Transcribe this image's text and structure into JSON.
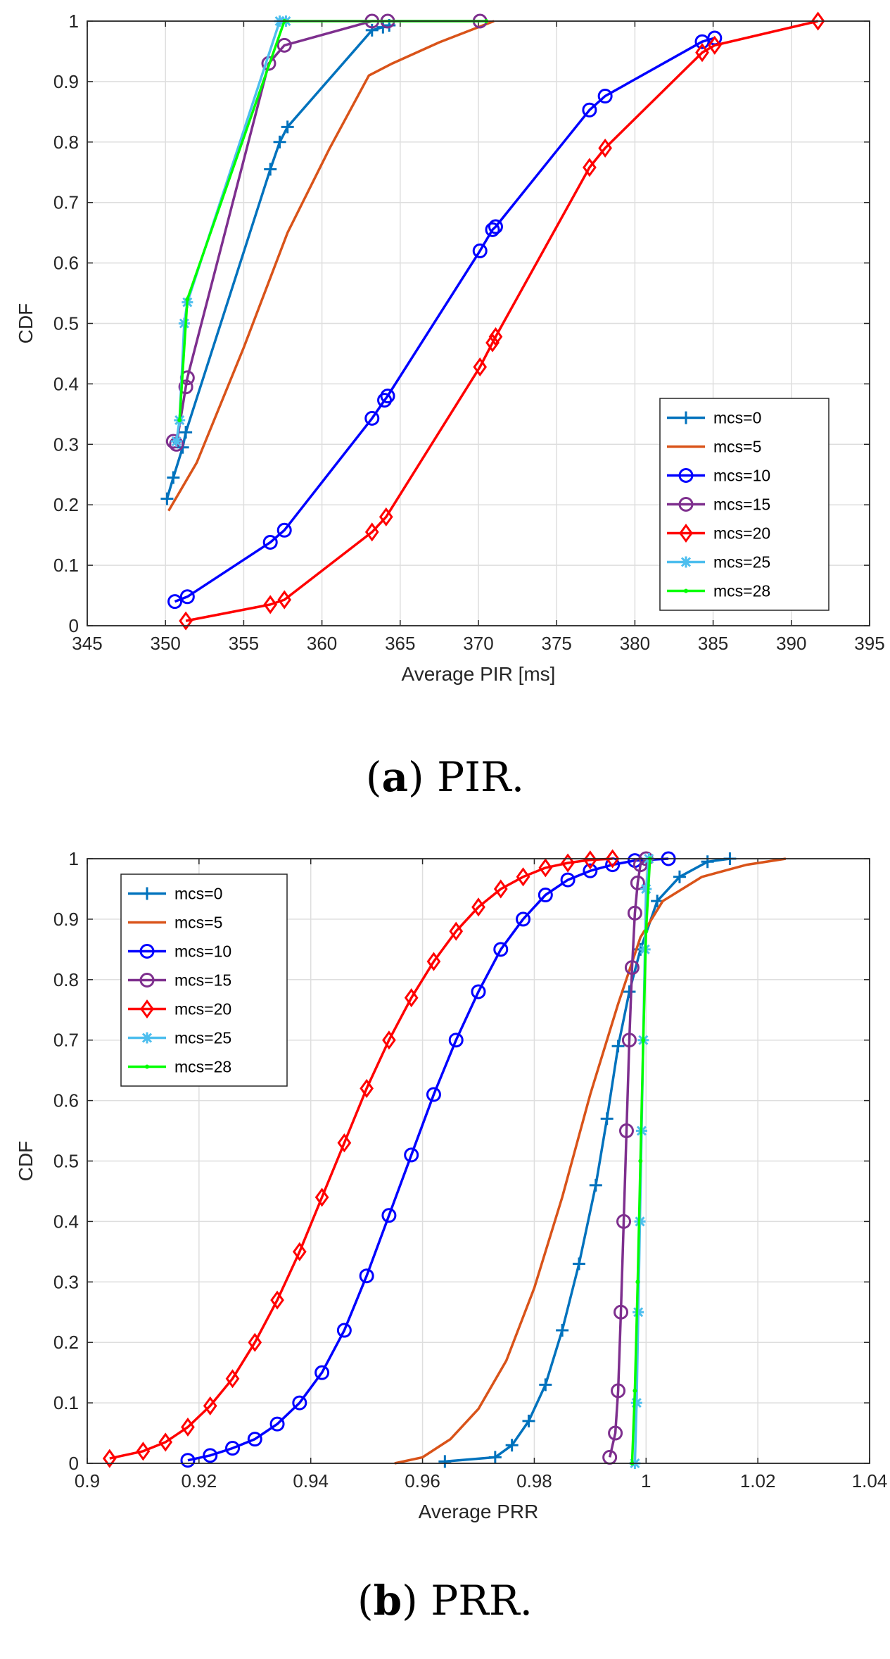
{
  "chart_data": [
    {
      "id": "a",
      "type": "line",
      "caption_letter": "a",
      "caption_text": "PIR.",
      "xlabel": "Average PIR [ms]",
      "ylabel": "CDF",
      "xlim": [
        345,
        395
      ],
      "ylim": [
        0,
        1
      ],
      "xticks": [
        345,
        350,
        355,
        360,
        365,
        370,
        375,
        380,
        385,
        390,
        395
      ],
      "yticks": [
        0,
        0.1,
        0.2,
        0.3,
        0.4,
        0.5,
        0.6,
        0.7,
        0.8,
        0.9,
        1
      ],
      "xtick_labels": [
        "345",
        "350",
        "355",
        "360",
        "365",
        "370",
        "375",
        "380",
        "385",
        "390",
        "395"
      ],
      "ytick_labels": [
        "0",
        "0.1",
        "0.2",
        "0.3",
        "0.4",
        "0.5",
        "0.6",
        "0.7",
        "0.8",
        "0.9",
        "1"
      ],
      "grid": true,
      "legend_position": "bottom-right",
      "series": [
        {
          "name": "mcs=0",
          "color": "#0072BD",
          "marker": "plus",
          "x": [
            350.1,
            350.5,
            351.1,
            351.3,
            356.7,
            357.3,
            357.8,
            363.2,
            363.9,
            364.3
          ],
          "y": [
            0.21,
            0.245,
            0.295,
            0.32,
            0.755,
            0.8,
            0.825,
            0.985,
            0.99,
            0.993
          ]
        },
        {
          "name": "mcs=5",
          "color": "#D95319",
          "marker": "none",
          "x": [
            350.2,
            352,
            355,
            357.8,
            360.5,
            363,
            364.5,
            367.5,
            371
          ],
          "y": [
            0.19,
            0.27,
            0.46,
            0.65,
            0.79,
            0.91,
            0.93,
            0.965,
            1.0
          ]
        },
        {
          "name": "mcs=10",
          "color": "#0000FF",
          "marker": "circle",
          "x": [
            350.6,
            351.4,
            356.7,
            357.6,
            363.2,
            364.0,
            364.2,
            370.1,
            370.9,
            371.1,
            377.1,
            378.1,
            384.3,
            385.1
          ],
          "y": [
            0.04,
            0.048,
            0.138,
            0.158,
            0.343,
            0.373,
            0.38,
            0.62,
            0.655,
            0.66,
            0.853,
            0.876,
            0.966,
            0.972
          ]
        },
        {
          "name": "mcs=15",
          "color": "#7E2F8E",
          "marker": "circle",
          "x": [
            350.5,
            350.7,
            351.3,
            351.4,
            356.6,
            357.6,
            363.2,
            364.2,
            370.1
          ],
          "y": [
            0.305,
            0.3,
            0.395,
            0.41,
            0.93,
            0.96,
            1.0,
            1.0,
            1.0
          ]
        },
        {
          "name": "mcs=20",
          "color": "#FF0000",
          "marker": "diamond",
          "x": [
            351.3,
            356.7,
            357.6,
            363.2,
            364.1,
            370.1,
            370.9,
            371.1,
            377.1,
            378.1,
            384.3,
            385.1,
            391.7
          ],
          "y": [
            0.008,
            0.035,
            0.043,
            0.155,
            0.18,
            0.428,
            0.468,
            0.478,
            0.758,
            0.79,
            0.948,
            0.96,
            1.0
          ]
        },
        {
          "name": "mcs=25",
          "color": "#4DBEEE",
          "marker": "star",
          "x": [
            350.7,
            350.9,
            351.2,
            351.4,
            357.3,
            357.7
          ],
          "y": [
            0.305,
            0.34,
            0.5,
            0.535,
            1.0,
            1.0
          ]
        },
        {
          "name": "mcs=28",
          "color": "#00FF00",
          "marker": "point",
          "x": [
            350.9,
            351.4,
            357.6,
            370.5
          ],
          "y": [
            0.34,
            0.54,
            1.0,
            1.0
          ]
        }
      ]
    },
    {
      "id": "b",
      "type": "line",
      "caption_letter": "b",
      "caption_text": "PRR.",
      "xlabel": "Average PRR",
      "ylabel": "CDF",
      "xlim": [
        0.9,
        1.04
      ],
      "ylim": [
        0,
        1
      ],
      "xticks": [
        0.9,
        0.92,
        0.94,
        0.96,
        0.98,
        1.0,
        1.02,
        1.04
      ],
      "yticks": [
        0,
        0.1,
        0.2,
        0.3,
        0.4,
        0.5,
        0.6,
        0.7,
        0.8,
        0.9,
        1
      ],
      "xtick_labels": [
        "0.9",
        "0.92",
        "0.94",
        "0.96",
        "0.98",
        "1",
        "1.02",
        "1.04"
      ],
      "ytick_labels": [
        "0",
        "0.1",
        "0.2",
        "0.3",
        "0.4",
        "0.5",
        "0.6",
        "0.7",
        "0.8",
        "0.9",
        "1"
      ],
      "grid": true,
      "legend_position": "top-left",
      "series": [
        {
          "name": "mcs=0",
          "color": "#0072BD",
          "marker": "plus",
          "x": [
            0.964,
            0.973,
            0.976,
            0.979,
            0.982,
            0.985,
            0.988,
            0.991,
            0.993,
            0.995,
            0.997,
            0.999,
            1.002,
            1.006,
            1.011,
            1.015
          ],
          "y": [
            0.003,
            0.01,
            0.03,
            0.07,
            0.13,
            0.22,
            0.33,
            0.46,
            0.57,
            0.69,
            0.78,
            0.85,
            0.93,
            0.97,
            0.995,
            1.0
          ]
        },
        {
          "name": "mcs=5",
          "color": "#D95319",
          "marker": "none",
          "x": [
            0.955,
            0.96,
            0.965,
            0.97,
            0.975,
            0.98,
            0.985,
            0.99,
            0.995,
            0.999,
            1.003,
            1.01,
            1.018,
            1.025
          ],
          "y": [
            0.0,
            0.01,
            0.04,
            0.09,
            0.17,
            0.29,
            0.44,
            0.61,
            0.76,
            0.87,
            0.93,
            0.97,
            0.99,
            1.0
          ]
        },
        {
          "name": "mcs=10",
          "color": "#0000FF",
          "marker": "circle",
          "x": [
            0.918,
            0.922,
            0.926,
            0.93,
            0.934,
            0.938,
            0.942,
            0.946,
            0.95,
            0.954,
            0.958,
            0.962,
            0.966,
            0.97,
            0.974,
            0.978,
            0.982,
            0.986,
            0.99,
            0.994,
            0.998,
            1.004
          ],
          "y": [
            0.005,
            0.013,
            0.025,
            0.04,
            0.065,
            0.1,
            0.15,
            0.22,
            0.31,
            0.41,
            0.51,
            0.61,
            0.7,
            0.78,
            0.85,
            0.9,
            0.94,
            0.965,
            0.98,
            0.99,
            0.997,
            1.0
          ]
        },
        {
          "name": "mcs=15",
          "color": "#7E2F8E",
          "marker": "circle",
          "x": [
            0.9935,
            0.9945,
            0.995,
            0.9955,
            0.996,
            0.9965,
            0.997,
            0.9975,
            0.998,
            0.9985,
            0.999,
            1.0
          ],
          "y": [
            0.01,
            0.05,
            0.12,
            0.25,
            0.4,
            0.55,
            0.7,
            0.82,
            0.91,
            0.96,
            0.99,
            1.0
          ]
        },
        {
          "name": "mcs=20",
          "color": "#FF0000",
          "marker": "diamond",
          "x": [
            0.904,
            0.91,
            0.914,
            0.918,
            0.922,
            0.926,
            0.93,
            0.934,
            0.938,
            0.942,
            0.946,
            0.95,
            0.954,
            0.958,
            0.962,
            0.966,
            0.97,
            0.974,
            0.978,
            0.982,
            0.986,
            0.99,
            0.994
          ],
          "y": [
            0.008,
            0.02,
            0.035,
            0.06,
            0.095,
            0.14,
            0.2,
            0.27,
            0.35,
            0.44,
            0.53,
            0.62,
            0.7,
            0.77,
            0.83,
            0.88,
            0.92,
            0.95,
            0.97,
            0.985,
            0.993,
            0.998,
            1.0
          ]
        },
        {
          "name": "mcs=25",
          "color": "#4DBEEE",
          "marker": "star",
          "x": [
            0.998,
            0.9983,
            0.9986,
            0.9989,
            0.9992,
            0.9995,
            0.9998,
            1.0,
            1.0005
          ],
          "y": [
            0.0,
            0.1,
            0.25,
            0.4,
            0.55,
            0.7,
            0.85,
            0.95,
            1.0
          ]
        },
        {
          "name": "mcs=28",
          "color": "#00FF00",
          "marker": "point",
          "x": [
            0.9975,
            0.998,
            0.9985,
            0.999,
            0.9995,
            1.0,
            1.0007
          ],
          "y": [
            0.0,
            0.12,
            0.3,
            0.5,
            0.7,
            0.88,
            1.0
          ]
        }
      ]
    }
  ]
}
